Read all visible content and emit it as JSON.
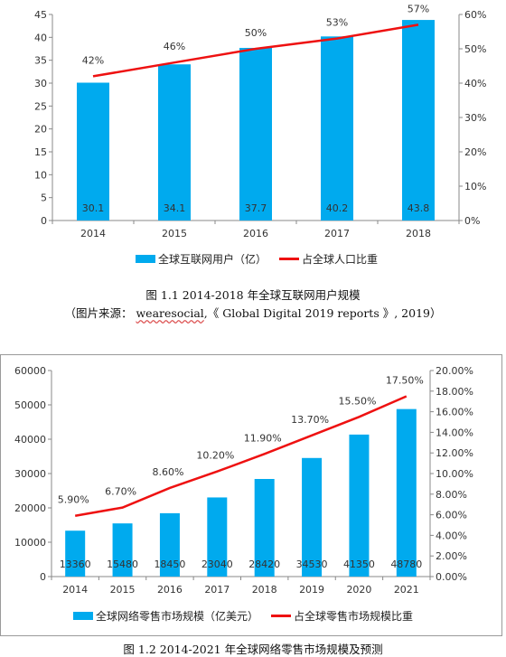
{
  "colors": {
    "bar": "#00aaee",
    "line": "#ee1111",
    "axis": "#888888"
  },
  "chart_data": [
    {
      "type": "bar",
      "categories": [
        "2014",
        "2015",
        "2016",
        "2017",
        "2018"
      ],
      "series": [
        {
          "name": "全球互联网用户（亿）",
          "type": "bar",
          "axis": "left",
          "values": [
            30.1,
            34.1,
            37.7,
            40.2,
            43.8
          ],
          "labels": [
            "30.1",
            "34.1",
            "37.7",
            "40.2",
            "43.8"
          ]
        },
        {
          "name": "占全球人口比重",
          "type": "line",
          "axis": "right",
          "values": [
            42,
            46,
            50,
            53,
            57
          ],
          "labels": [
            "42%",
            "46%",
            "50%",
            "53%",
            "57%"
          ]
        }
      ],
      "ylim": [
        0,
        45
      ],
      "yticks": [
        "0",
        "5",
        "10",
        "15",
        "20",
        "25",
        "30",
        "35",
        "40",
        "45"
      ],
      "y2lim": [
        0,
        60
      ],
      "y2ticks": [
        "0%",
        "10%",
        "20%",
        "30%",
        "40%",
        "50%",
        "60%"
      ],
      "legend_position": "bottom",
      "grid": false,
      "caption": "图 1.1 2014-2018 年全球互联网用户规模",
      "source_prefix": "（图片来源： ",
      "source_link": "wearesocial",
      "source_suffix": ",《 Global Digital 2019 reports 》, 2019）"
    },
    {
      "type": "bar",
      "categories": [
        "2014",
        "2015",
        "2016",
        "2017",
        "2018",
        "2019",
        "2020",
        "2021"
      ],
      "series": [
        {
          "name": "全球网络零售市场规模（亿美元）",
          "type": "bar",
          "axis": "left",
          "values": [
            13360,
            15480,
            18450,
            23040,
            28420,
            34530,
            41350,
            48780
          ],
          "labels": [
            "13360",
            "15480",
            "18450",
            "23040",
            "28420",
            "34530",
            "41350",
            "48780"
          ]
        },
        {
          "name": "占全球零售市场规模比重",
          "type": "line",
          "axis": "right",
          "values": [
            5.9,
            6.7,
            8.6,
            10.2,
            11.9,
            13.7,
            15.5,
            17.5
          ],
          "labels": [
            "5.90%",
            "6.70%",
            "8.60%",
            "10.20%",
            "11.90%",
            "13.70%",
            "15.50%",
            "17.50%"
          ]
        }
      ],
      "ylim": [
        0,
        60000
      ],
      "yticks": [
        "0",
        "10000",
        "20000",
        "30000",
        "40000",
        "50000",
        "60000"
      ],
      "y2lim": [
        0,
        20
      ],
      "y2ticks": [
        "0.00%",
        "2.00%",
        "4.00%",
        "6.00%",
        "8.00%",
        "10.00%",
        "12.00%",
        "14.00%",
        "16.00%",
        "18.00%",
        "20.00%"
      ],
      "legend_position": "bottom",
      "grid": false,
      "caption": "图 1.2 2014-2021 年全球网络零售市场规模及预测"
    }
  ]
}
